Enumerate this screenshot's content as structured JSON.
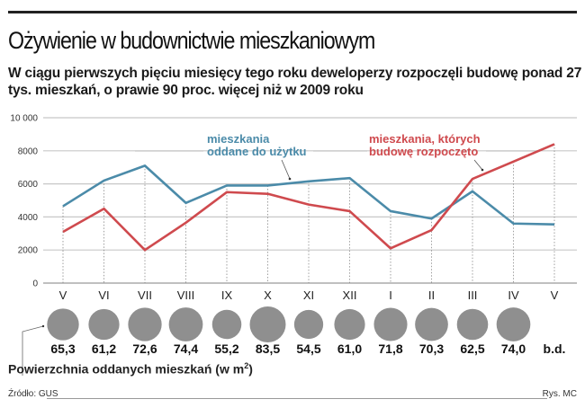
{
  "header": {
    "title": "Ożywienie w budownictwie mieszkaniowym",
    "subtitle": "W ciągu pierwszych pięciu miesięcy tego roku deweloperzy rozpoczęli budowę ponad 27 tys. mieszkań, o prawie 90 proc. więcej niż w 2009 roku"
  },
  "legend": {
    "blue_line1": "mieszkania",
    "blue_line2": "oddane do użytku",
    "red_line1": "mieszkania, których",
    "red_line2": "budowę rozpoczęto"
  },
  "bubbles": {
    "label": "Powierzchnia oddanych mieszkań (w m",
    "label_sup": "2",
    "label_end": ")"
  },
  "footer": {
    "source": "Źródło: GUS",
    "credit": "Rys. MC"
  },
  "colors": {
    "blue": "#4b8ba9",
    "red": "#cf4a4e",
    "bubble": "#8f8f8f",
    "grid": "#c8c8c8"
  },
  "chart_data": [
    {
      "type": "line",
      "title": "Ożywienie w budownictwie mieszkaniowym",
      "xlabel": "",
      "ylabel": "",
      "ylim": [
        0,
        10000
      ],
      "yticks": [
        0,
        2000,
        4000,
        6000,
        8000,
        10000
      ],
      "ytick_labels": [
        "0",
        "2000",
        "4000",
        "6000",
        "8000",
        "10 000"
      ],
      "grid": true,
      "categories": [
        "V",
        "VI",
        "VII",
        "VIII",
        "IX",
        "X",
        "XI",
        "XII",
        "I",
        "II",
        "III",
        "IV",
        "V"
      ],
      "series": [
        {
          "name": "mieszkania oddane do użytku",
          "color": "#4b8ba9",
          "values": [
            4650,
            6200,
            7100,
            4850,
            5900,
            5900,
            6150,
            6350,
            4350,
            3900,
            5550,
            3600,
            3550
          ]
        },
        {
          "name": "mieszkania, których budowę rozpoczęto",
          "color": "#cf4a4e",
          "values": [
            3100,
            4500,
            2000,
            3650,
            5500,
            5400,
            4750,
            4350,
            2100,
            3200,
            6300,
            7350,
            8400
          ]
        }
      ]
    },
    {
      "type": "bubble",
      "title": "Powierzchnia oddanych mieszkań (w m²)",
      "categories": [
        "V",
        "VI",
        "VII",
        "VIII",
        "IX",
        "X",
        "XI",
        "XII",
        "I",
        "II",
        "III",
        "IV",
        "V"
      ],
      "values": [
        65.3,
        61.2,
        72.6,
        74.4,
        55.2,
        83.5,
        54.5,
        61.0,
        71.8,
        70.3,
        62.5,
        74.0,
        null
      ],
      "labels": [
        "65,3",
        "61,2",
        "72,6",
        "74,4",
        "55,2",
        "83,5",
        "54,5",
        "61,0",
        "71,8",
        "70,3",
        "62,5",
        "74,0",
        "b.d."
      ]
    }
  ]
}
